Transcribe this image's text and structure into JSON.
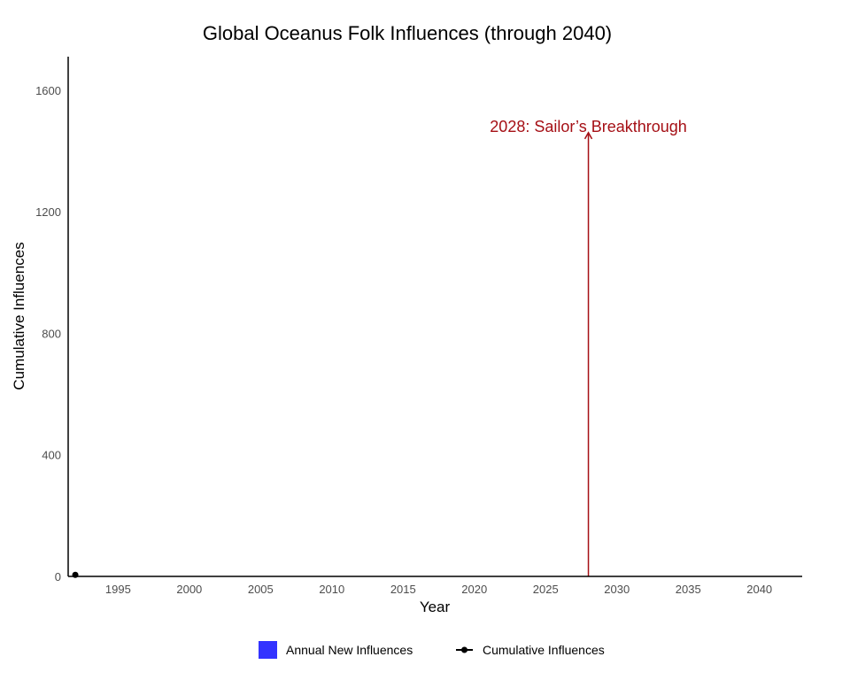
{
  "chart_data": {
    "type": "bar",
    "title": "Global Oceanus Folk Influences (through 2040)",
    "xlabel": "Year",
    "ylabel": "Cumulative Influences",
    "xlim": [
      1991.5,
      2043
    ],
    "ylim": [
      0,
      1710
    ],
    "x_ticks": [
      1995,
      2000,
      2005,
      2010,
      2015,
      2020,
      2025,
      2030,
      2035,
      2040
    ],
    "y_ticks": [
      0,
      400,
      800,
      1200,
      1600
    ],
    "grid": false,
    "legend_position": "bottom",
    "colors": {
      "bars": "#3333ff",
      "line": "#000000",
      "annotation": "#a50f15",
      "axis": "#000000"
    },
    "series": [
      {
        "name": "Annual New Influences",
        "kind": "bar",
        "x": [],
        "values": []
      },
      {
        "name": "Cumulative Influences",
        "kind": "line",
        "x": [
          1992
        ],
        "values": [
          5
        ]
      }
    ],
    "annotations": [
      {
        "text": "2028: Sailor’s Breakthrough",
        "x": 2028,
        "y_start": 0,
        "y_end": 1460
      }
    ]
  }
}
